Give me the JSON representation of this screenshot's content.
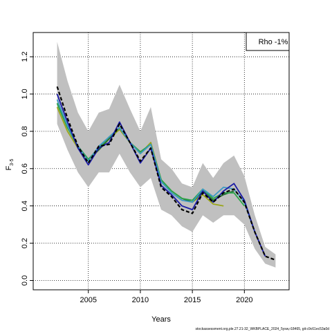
{
  "chart_data": {
    "type": "line",
    "xlabel": "Years",
    "ylabel_main": "F",
    "ylabel_sub": "3-5",
    "xlim": [
      1999.7,
      2024.3
    ],
    "ylim": [
      -0.05,
      1.33
    ],
    "xticks": [
      2005,
      2010,
      2015,
      2020
    ],
    "xtick_labels": [
      "2005",
      "2010",
      "2015",
      "2020"
    ],
    "yticks": [
      0.0,
      0.2,
      0.4,
      0.6,
      0.8,
      1.0,
      1.2
    ],
    "ytick_labels": [
      "0.0",
      "0.2",
      "0.4",
      "0.6",
      "0.8",
      "1.0",
      "1.2"
    ],
    "grid": true,
    "legend": {
      "text": "Rho -1%",
      "placement": "top-right"
    },
    "caption": "stockassessment.org,ple.27.21-32_WKBPLACE_2024_5ysw,r18465, git:c9c61ec53a0d",
    "colors": {
      "band": "#c0c0c0",
      "base": "#000000",
      "peel1": "#1a1aa6",
      "peel2": "#3d9ac4",
      "peel3": "#2ba54a",
      "peel4": "#1e6b30",
      "peel5": "#9aa61a"
    },
    "band": {
      "x": [
        2002,
        2003,
        2004,
        2005,
        2006,
        2007,
        2008,
        2009,
        2010,
        2011,
        2012,
        2013,
        2014,
        2015,
        2016,
        2017,
        2018,
        2019,
        2020,
        2021,
        2022,
        2023
      ],
      "lower": [
        0.84,
        0.7,
        0.58,
        0.5,
        0.58,
        0.58,
        0.68,
        0.58,
        0.5,
        0.55,
        0.38,
        0.35,
        0.29,
        0.26,
        0.35,
        0.31,
        0.35,
        0.35,
        0.3,
        0.17,
        0.09,
        0.07
      ],
      "upper": [
        1.28,
        1.07,
        0.9,
        0.8,
        0.9,
        0.92,
        1.05,
        0.92,
        0.8,
        0.93,
        0.65,
        0.6,
        0.52,
        0.5,
        0.63,
        0.55,
        0.63,
        0.67,
        0.56,
        0.35,
        0.18,
        0.14
      ]
    },
    "series": [
      {
        "x": [
          2002,
          2003,
          2004,
          2005,
          2006,
          2007,
          2008,
          2009,
          2010,
          2011,
          2012,
          2013,
          2014,
          2015,
          2016,
          2017,
          2018,
          2019,
          2020,
          2021,
          2022,
          2023
        ],
        "values": [
          1.04,
          0.87,
          0.72,
          0.63,
          0.72,
          0.73,
          0.84,
          0.74,
          0.64,
          0.71,
          0.5,
          0.45,
          0.38,
          0.36,
          0.47,
          0.42,
          0.47,
          0.49,
          0.42,
          0.26,
          0.13,
          0.11
        ]
      },
      {
        "x": [
          2002,
          2003,
          2004,
          2005,
          2006,
          2007,
          2008,
          2009,
          2010,
          2011,
          2012,
          2013,
          2014,
          2015,
          2016,
          2017,
          2018,
          2019,
          2020,
          2021,
          2022
        ],
        "values": [
          1.0,
          0.85,
          0.71,
          0.62,
          0.71,
          0.74,
          0.85,
          0.74,
          0.63,
          0.71,
          0.51,
          0.46,
          0.4,
          0.38,
          0.48,
          0.42,
          0.48,
          0.52,
          0.43,
          0.26,
          0.13
        ]
      },
      {
        "x": [
          2002,
          2003,
          2004,
          2005,
          2006,
          2007,
          2008,
          2009,
          2010,
          2011,
          2012,
          2013,
          2014,
          2015,
          2016,
          2017,
          2018,
          2019,
          2020,
          2021
        ],
        "values": [
          0.97,
          0.83,
          0.72,
          0.64,
          0.72,
          0.77,
          0.82,
          0.74,
          0.68,
          0.73,
          0.53,
          0.47,
          0.43,
          0.42,
          0.49,
          0.45,
          0.5,
          0.49,
          0.42,
          0.26
        ]
      },
      {
        "x": [
          2002,
          2003,
          2004,
          2005,
          2006,
          2007,
          2008,
          2009,
          2010,
          2011,
          2012,
          2013,
          2014,
          2015,
          2016,
          2017,
          2018,
          2019,
          2020
        ],
        "values": [
          0.95,
          0.82,
          0.72,
          0.65,
          0.71,
          0.77,
          0.82,
          0.74,
          0.69,
          0.73,
          0.54,
          0.48,
          0.44,
          0.43,
          0.49,
          0.44,
          0.47,
          0.47,
          0.4
        ]
      },
      {
        "x": [
          2002,
          2003,
          2004,
          2005,
          2006,
          2007,
          2008,
          2009,
          2010,
          2011,
          2012,
          2013,
          2014,
          2015,
          2016,
          2017,
          2018,
          2019
        ],
        "values": [
          0.95,
          0.82,
          0.72,
          0.65,
          0.7,
          0.76,
          0.82,
          0.74,
          0.69,
          0.73,
          0.54,
          0.48,
          0.44,
          0.42,
          0.48,
          0.43,
          0.46,
          0.48
        ]
      },
      {
        "x": [
          2002,
          2003,
          2004,
          2005,
          2006,
          2007,
          2008,
          2009,
          2010,
          2011,
          2012,
          2013,
          2014,
          2015,
          2016,
          2017,
          2018
        ],
        "values": [
          0.93,
          0.8,
          0.71,
          0.64,
          0.7,
          0.76,
          0.81,
          0.74,
          0.68,
          0.74,
          0.54,
          0.48,
          0.44,
          0.42,
          0.46,
          0.41,
          0.4
        ]
      }
    ]
  }
}
